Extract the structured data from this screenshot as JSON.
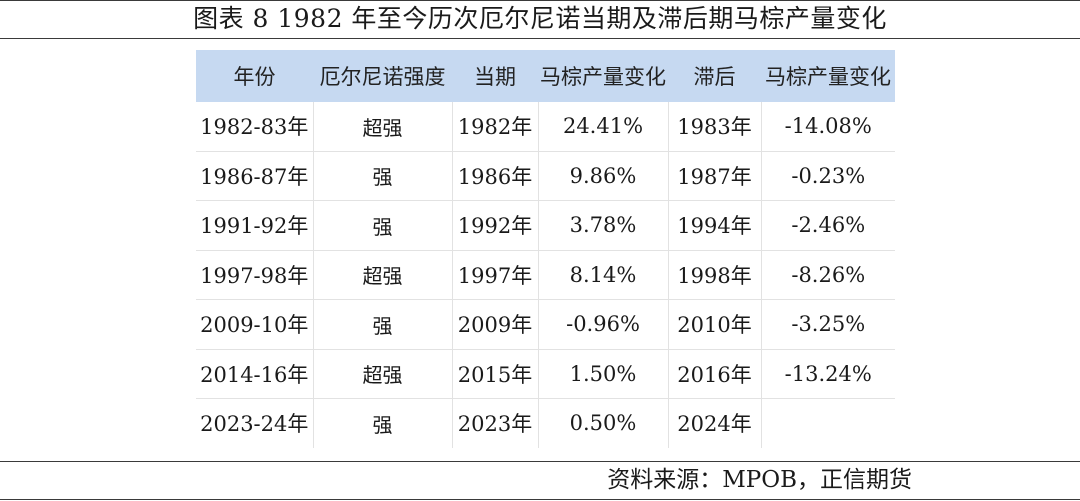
{
  "title": "图表 8  1982 年至今历次厄尔尼诺当期及滞后期马棕产量变化",
  "source": "资料来源：MPOB，正信期货",
  "table": {
    "headers": [
      "年份",
      "厄尔尼诺强度",
      "当期",
      "马棕产量变化",
      "滞后",
      "马棕产量变化"
    ],
    "rows": [
      [
        "1982-83年",
        "超强",
        "1982年",
        "24.41%",
        "1983年",
        "-14.08%"
      ],
      [
        "1986-87年",
        "强",
        "1986年",
        "9.86%",
        "1987年",
        "-0.23%"
      ],
      [
        "1991-92年",
        "强",
        "1992年",
        "3.78%",
        "1994年",
        "-2.46%"
      ],
      [
        "1997-98年",
        "超强",
        "1997年",
        "8.14%",
        "1998年",
        "-8.26%"
      ],
      [
        "2009-10年",
        "强",
        "2009年",
        "-0.96%",
        "2010年",
        "-3.25%"
      ],
      [
        "2014-16年",
        "超强",
        "2015年",
        "1.50%",
        "2016年",
        "-13.24%"
      ],
      [
        "2023-24年",
        "强",
        "2023年",
        "0.50%",
        "2024年",
        ""
      ]
    ]
  }
}
